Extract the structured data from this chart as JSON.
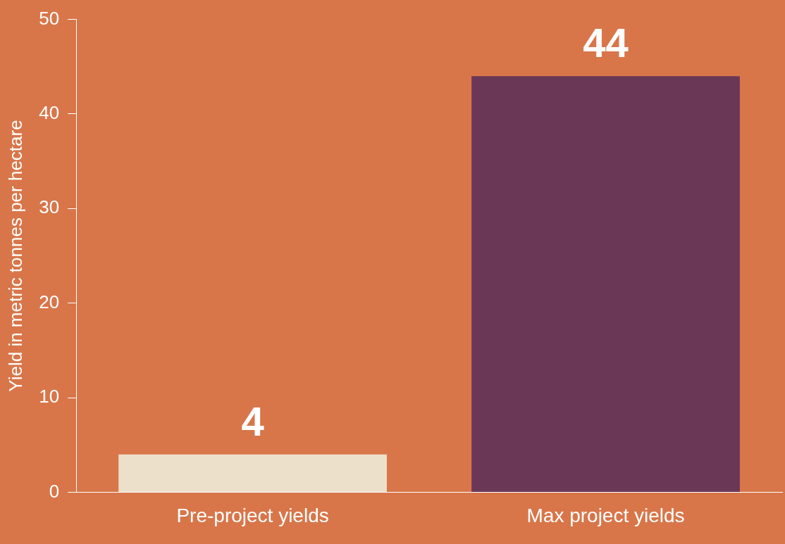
{
  "chart_data": {
    "type": "bar",
    "categories": [
      "Pre-project yields",
      "Max project yields"
    ],
    "colors": [
      "#ede0ca",
      "#6b3757"
    ],
    "values": [
      4,
      44
    ],
    "ylabel": "Yield in metric tonnes per hectare",
    "ylim": [
      0,
      50
    ],
    "yticks": [
      0,
      10,
      20,
      30,
      40,
      50
    ],
    "data_labels": true,
    "grid": false,
    "legend": false
  }
}
